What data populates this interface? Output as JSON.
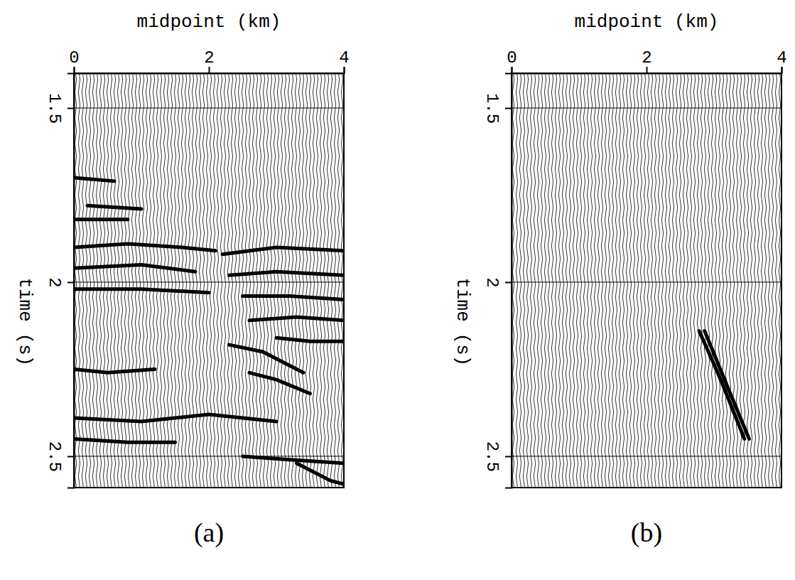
{
  "chart_data": [
    {
      "type": "line",
      "title": "(a)",
      "x_label": "midpoint (km)",
      "y_label": "time (s)",
      "xlim": [
        0,
        4
      ],
      "xticks": [
        0,
        2,
        4
      ],
      "ylim": [
        1.4,
        2.59
      ],
      "yticks": [
        1.5,
        2,
        2.5
      ],
      "grid": true,
      "color": "#000000",
      "series": [
        {
          "x": [
            0.0,
            0.8,
            1.6,
            2.1
          ],
          "values": [
            1.9,
            1.89,
            1.9,
            1.91
          ]
        },
        {
          "x": [
            0.0,
            1.0,
            1.8
          ],
          "values": [
            1.96,
            1.95,
            1.97
          ]
        },
        {
          "x": [
            0.0,
            1.0,
            2.0
          ],
          "values": [
            2.02,
            2.02,
            2.03
          ]
        },
        {
          "x": [
            2.2,
            3.0,
            4.0
          ],
          "values": [
            1.92,
            1.9,
            1.91
          ]
        },
        {
          "x": [
            2.3,
            3.0,
            4.0
          ],
          "values": [
            1.98,
            1.97,
            1.98
          ]
        },
        {
          "x": [
            2.5,
            3.2,
            4.0
          ],
          "values": [
            2.04,
            2.04,
            2.05
          ]
        },
        {
          "x": [
            2.6,
            3.3,
            4.0
          ],
          "values": [
            2.11,
            2.1,
            2.11
          ]
        },
        {
          "x": [
            2.3,
            2.8,
            3.4
          ],
          "values": [
            2.18,
            2.2,
            2.26
          ]
        },
        {
          "x": [
            2.6,
            3.0,
            3.5
          ],
          "values": [
            2.26,
            2.28,
            2.32
          ]
        },
        {
          "x": [
            3.0,
            3.5,
            4.0
          ],
          "values": [
            2.16,
            2.17,
            2.17
          ]
        },
        {
          "x": [
            0.0,
            0.5,
            1.2
          ],
          "values": [
            2.25,
            2.26,
            2.25
          ]
        },
        {
          "x": [
            0.0,
            1.0,
            2.0,
            3.0
          ],
          "values": [
            2.39,
            2.4,
            2.38,
            2.4
          ]
        },
        {
          "x": [
            0.0,
            0.8,
            1.5
          ],
          "values": [
            2.45,
            2.46,
            2.46
          ]
        },
        {
          "x": [
            2.5,
            3.2,
            4.0
          ],
          "values": [
            2.5,
            2.51,
            2.52
          ]
        },
        {
          "x": [
            3.3,
            3.8,
            4.0
          ],
          "values": [
            2.52,
            2.57,
            2.58
          ]
        },
        {
          "x": [
            0.0,
            0.6
          ],
          "values": [
            1.7,
            1.71
          ]
        },
        {
          "x": [
            0.2,
            1.0
          ],
          "values": [
            1.78,
            1.79
          ]
        },
        {
          "x": [
            0.0,
            0.8
          ],
          "values": [
            1.82,
            1.82
          ]
        }
      ]
    },
    {
      "type": "line",
      "title": "(b)",
      "x_label": "midpoint (km)",
      "y_label": "time (s)",
      "xlim": [
        0,
        4
      ],
      "xticks": [
        0,
        2,
        4
      ],
      "ylim": [
        1.4,
        2.59
      ],
      "yticks": [
        1.5,
        2,
        2.5
      ],
      "grid": true,
      "color": "#000000",
      "series": [
        {
          "x": [
            2.78,
            3.1,
            3.45
          ],
          "values": [
            2.14,
            2.28,
            2.45
          ]
        },
        {
          "x": [
            2.86,
            3.2,
            3.52
          ],
          "values": [
            2.14,
            2.3,
            2.45
          ]
        }
      ]
    }
  ]
}
